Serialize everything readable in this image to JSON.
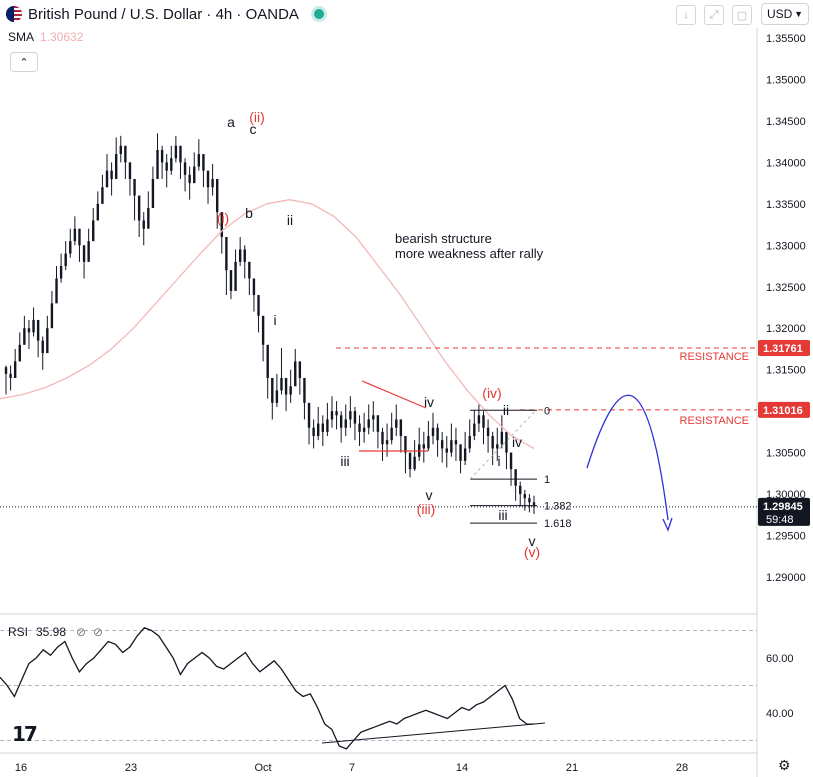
{
  "header": {
    "symbol_title": "British Pound / U.S. Dollar · 4h · OANDA",
    "sma_label": "SMA",
    "sma_value": "1.30632",
    "collapse_icon": "chevron-up-icon",
    "currency": "USD"
  },
  "colors": {
    "candle": "#131722",
    "sma": "#f4b8b8",
    "resistance": "#e53935",
    "arc": "#2f2fd8",
    "wave_red": "#e53935",
    "wave_black": "#131722",
    "axis_text": "#131722",
    "grid": "#e9ebef"
  },
  "chart_data": [
    {
      "type": "candlestick",
      "title": "British Pound / U.S. Dollar · 4h · OANDA",
      "timeframe": "4h",
      "x_ticks": [
        "16",
        "23",
        "Oct",
        "7",
        "14",
        "21",
        "28"
      ],
      "y_ticks": [
        "1.35500",
        "1.35000",
        "1.34500",
        "1.34000",
        "1.33500",
        "1.33000",
        "1.32500",
        "1.32000",
        "1.31500",
        "1.31000",
        "1.30500",
        "1.30000",
        "1.29500",
        "1.29000"
      ],
      "ylim": [
        1.286,
        1.358
      ],
      "path_closes": [
        1.3145,
        1.314,
        1.316,
        1.318,
        1.32,
        1.3195,
        1.321,
        1.3185,
        1.317,
        1.32,
        1.323,
        1.326,
        1.3275,
        1.329,
        1.3305,
        1.332,
        1.33,
        1.328,
        1.3305,
        1.333,
        1.335,
        1.337,
        1.339,
        1.338,
        1.341,
        1.342,
        1.34,
        1.338,
        1.336,
        1.333,
        1.332,
        1.3345,
        1.338,
        1.3415,
        1.34,
        1.339,
        1.3405,
        1.342,
        1.34,
        1.3385,
        1.3375,
        1.3395,
        1.341,
        1.339,
        1.337,
        1.338,
        1.334,
        1.331,
        1.327,
        1.3245,
        1.328,
        1.3295,
        1.328,
        1.326,
        1.324,
        1.3215,
        1.318,
        1.314,
        1.311,
        1.3125,
        1.314,
        1.312,
        1.313,
        1.316,
        1.314,
        1.311,
        1.308,
        1.307,
        1.3085,
        1.3075,
        1.309,
        1.31,
        1.3095,
        1.308,
        1.309,
        1.31,
        1.3085,
        1.3075,
        1.308,
        1.309,
        1.3095,
        1.3075,
        1.306,
        1.3065,
        1.308,
        1.309,
        1.307,
        1.305,
        1.303,
        1.3045,
        1.306,
        1.3055,
        1.307,
        1.308,
        1.3065,
        1.3055,
        1.305,
        1.3065,
        1.306,
        1.304,
        1.3055,
        1.307,
        1.3085,
        1.3095,
        1.308,
        1.307,
        1.3055,
        1.306,
        1.3075,
        1.305,
        1.303,
        1.301,
        1.3,
        1.2995,
        1.299,
        1.2985
      ],
      "path_highs": [
        1.3155,
        1.3155,
        1.3175,
        1.3195,
        1.3215,
        1.321,
        1.3225,
        1.32,
        1.319,
        1.3215,
        1.3245,
        1.3275,
        1.329,
        1.3305,
        1.332,
        1.3335,
        1.3315,
        1.33,
        1.332,
        1.3345,
        1.3365,
        1.3385,
        1.341,
        1.34,
        1.343,
        1.3432,
        1.342,
        1.34,
        1.338,
        1.335,
        1.334,
        1.3365,
        1.3395,
        1.3435,
        1.342,
        1.341,
        1.342,
        1.3432,
        1.342,
        1.3405,
        1.3395,
        1.3412,
        1.3428,
        1.341,
        1.339,
        1.3398,
        1.336,
        1.333,
        1.329,
        1.327,
        1.3295,
        1.331,
        1.33,
        1.328,
        1.326,
        1.3235,
        1.32,
        1.3165,
        1.3135,
        1.3145,
        1.3176,
        1.314,
        1.315,
        1.3175,
        1.316,
        1.313,
        1.31,
        1.309,
        1.3105,
        1.3095,
        1.311,
        1.3118,
        1.3112,
        1.31,
        1.3108,
        1.3118,
        1.3105,
        1.3095,
        1.3098,
        1.3108,
        1.3112,
        1.3095,
        1.308,
        1.3085,
        1.3098,
        1.3108,
        1.309,
        1.307,
        1.305,
        1.3065,
        1.308,
        1.3075,
        1.3088,
        1.3098,
        1.3085,
        1.3075,
        1.307,
        1.3085,
        1.308,
        1.306,
        1.3075,
        1.309,
        1.3101,
        1.3108,
        1.31,
        1.309,
        1.3075,
        1.308,
        1.3095,
        1.307,
        1.305,
        1.303,
        1.3015,
        1.3005,
        1.3,
        1.2998
      ],
      "path_lows": [
        1.312,
        1.3125,
        1.3145,
        1.316,
        1.318,
        1.3175,
        1.319,
        1.3165,
        1.315,
        1.318,
        1.321,
        1.324,
        1.3255,
        1.327,
        1.3285,
        1.33,
        1.328,
        1.326,
        1.3285,
        1.331,
        1.333,
        1.335,
        1.337,
        1.336,
        1.339,
        1.34,
        1.338,
        1.336,
        1.333,
        1.331,
        1.33,
        1.3325,
        1.336,
        1.3395,
        1.338,
        1.337,
        1.3385,
        1.34,
        1.338,
        1.3365,
        1.3355,
        1.3375,
        1.339,
        1.337,
        1.335,
        1.336,
        1.332,
        1.329,
        1.324,
        1.3235,
        1.326,
        1.3275,
        1.326,
        1.324,
        1.322,
        1.3195,
        1.316,
        1.3115,
        1.309,
        1.3105,
        1.312,
        1.31,
        1.311,
        1.314,
        1.312,
        1.309,
        1.306,
        1.3055,
        1.3065,
        1.3058,
        1.307,
        1.308,
        1.3078,
        1.3062,
        1.307,
        1.308,
        1.3065,
        1.3058,
        1.3062,
        1.3072,
        1.3075,
        1.3055,
        1.304,
        1.3045,
        1.306,
        1.307,
        1.305,
        1.3025,
        1.302,
        1.3028,
        1.304,
        1.3038,
        1.3052,
        1.306,
        1.3045,
        1.3038,
        1.3032,
        1.3045,
        1.304,
        1.3025,
        1.3035,
        1.305,
        1.3065,
        1.3075,
        1.306,
        1.305,
        1.3035,
        1.304,
        1.3055,
        1.303,
        1.301,
        1.2992,
        1.2985,
        1.298,
        1.2978,
        1.2976
      ],
      "sma_values": [
        1.3115,
        1.312,
        1.3128,
        1.314,
        1.3155,
        1.3175,
        1.32,
        1.323,
        1.326,
        1.329,
        1.3318,
        1.3338,
        1.335,
        1.3355,
        1.335,
        1.3335,
        1.331,
        1.3275,
        1.324,
        1.32,
        1.316,
        1.3125,
        1.3095,
        1.307,
        1.3055
      ],
      "sma_period_label": "SMA",
      "current_price": "1.29845",
      "countdown": "59:48",
      "resistance_levels": [
        {
          "value": "1.31761",
          "label": "RESISTANCE"
        },
        {
          "value": "1.31016",
          "label": "RESISTANCE"
        }
      ],
      "fib_levels": [
        {
          "label": "0",
          "value": 1.3101
        },
        {
          "label": "1",
          "value": 1.3018
        },
        {
          "label": "1.382",
          "value": 1.2986
        },
        {
          "label": "1.618",
          "value": 1.2965
        }
      ],
      "wave_labels": {
        "black": [
          "a",
          "c",
          "b",
          "ii",
          "i",
          "iii",
          "iv",
          "v",
          "ii",
          "iv",
          "i",
          "iii",
          "v"
        ],
        "red": [
          "(ii)",
          "(i)",
          "(iv)",
          "(iii)",
          "(v)"
        ]
      },
      "annotation": [
        "bearish structure",
        "more weakness after rally"
      ]
    },
    {
      "type": "line",
      "title": "RSI",
      "value_label": "35.98",
      "y_ticks": [
        "60.00",
        "40.00"
      ],
      "ylim": [
        26,
        74
      ],
      "levels": [
        70,
        50,
        30
      ],
      "values": [
        53,
        50,
        46,
        52,
        58,
        60,
        63,
        61,
        64,
        66,
        60,
        55,
        58,
        60,
        63,
        66,
        65,
        62,
        64,
        68,
        71,
        70,
        68,
        64,
        60,
        54,
        58,
        60,
        62,
        60,
        57,
        56,
        58,
        60,
        62,
        58,
        55,
        57,
        59,
        56,
        52,
        48,
        46,
        47,
        42,
        36,
        34,
        28,
        27,
        30,
        33,
        34,
        35,
        36,
        37,
        36,
        38,
        39,
        40,
        41,
        40,
        39,
        38,
        40,
        42,
        41,
        43,
        44,
        46,
        48,
        50,
        45,
        38,
        36,
        35.98
      ]
    }
  ]
}
